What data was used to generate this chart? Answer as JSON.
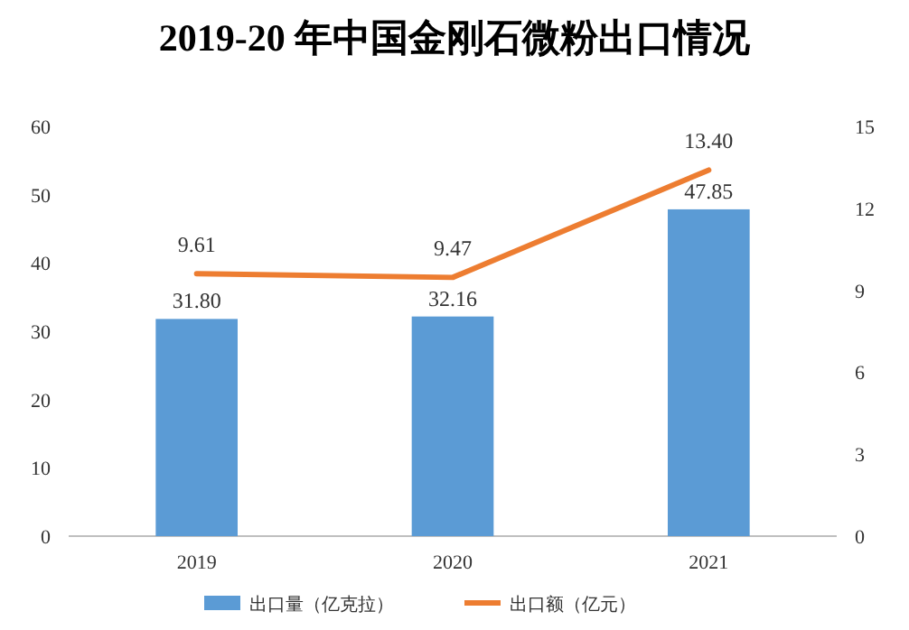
{
  "chart_data": {
    "type": "bar",
    "title": "2019-20 年中国金刚石微粉出口情况",
    "categories": [
      "2019",
      "2020",
      "2021"
    ],
    "series": [
      {
        "name": "出口量（亿克拉）",
        "color": "#5b9bd5",
        "values": [
          31.8,
          32.16,
          47.85
        ],
        "value_labels": [
          "31.80",
          "32.16",
          "47.85"
        ]
      },
      {
        "name": "出口额（亿元）",
        "type": "line",
        "axis": "y2",
        "color": "#ed7d31",
        "values": [
          9.61,
          9.47,
          13.4
        ],
        "value_labels": [
          "9.61",
          "9.47",
          "13.40"
        ]
      }
    ],
    "ylim": [
      0,
      60
    ],
    "yticks": [
      0,
      10,
      20,
      30,
      40,
      50,
      60
    ],
    "y2lim": [
      0,
      15
    ],
    "y2ticks": [
      0,
      3,
      6,
      9,
      12,
      15
    ],
    "grid": false,
    "legend": "bottom",
    "marker": "none"
  }
}
